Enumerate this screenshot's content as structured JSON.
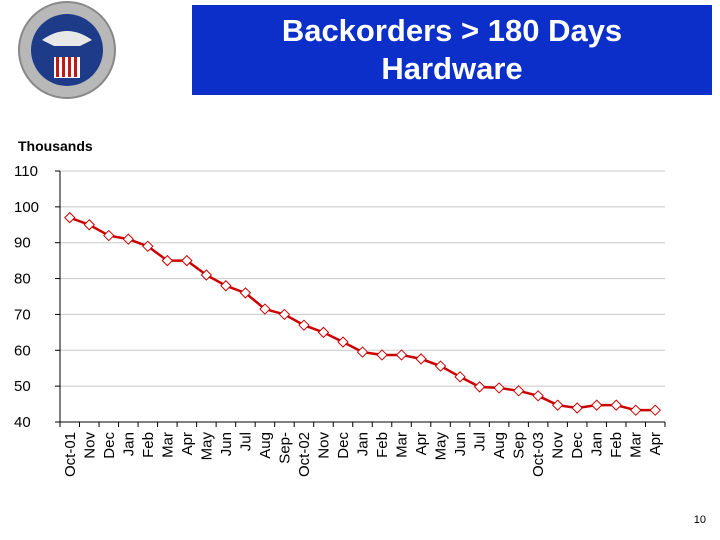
{
  "page_number": "10",
  "chart_data": {
    "type": "line",
    "title": "Backorders > 180 Days Hardware",
    "y_axis_label": "Thousands",
    "categories": [
      "Oct-01",
      "Nov",
      "Dec",
      "Jan",
      "Feb",
      "Mar",
      "Apr",
      "May",
      "Jun",
      "Jul",
      "Aug",
      "Sep-",
      "Oct-02",
      "Nov",
      "Dec",
      "Jan",
      "Feb",
      "Mar",
      "Apr",
      "May",
      "Jun",
      "Jul",
      "Aug",
      "Sep",
      "Oct-03",
      "Nov",
      "Dec",
      "Jan",
      "Feb",
      "Mar",
      "Apr"
    ],
    "series": [
      {
        "name": "Backorders",
        "color": "#cc0000",
        "values": [
          97,
          95,
          92,
          91,
          89,
          85,
          85,
          81,
          78,
          76,
          71.5,
          70,
          67,
          65,
          62.3,
          59.5,
          58.7,
          58.7,
          57.6,
          55.6,
          52.6,
          49.8,
          49.5,
          48.7,
          47.3,
          44.7,
          43.9,
          44.7,
          44.7,
          43.3,
          43.3
        ]
      }
    ],
    "ylim": [
      40,
      110
    ],
    "yticks": [
      40,
      50,
      60,
      70,
      80,
      90,
      100,
      110
    ],
    "grid": true
  }
}
